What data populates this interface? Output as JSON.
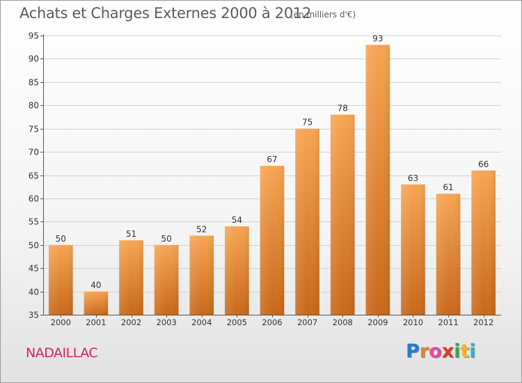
{
  "header": {
    "title": "Achats et Charges Externes 2000 à 2012",
    "subtitle": "(en milliers d'€)"
  },
  "footer": {
    "commune": "NADAILLAC",
    "logo_letters": [
      "P",
      "r",
      "o",
      "x",
      "i",
      "t",
      "i"
    ]
  },
  "colors": {
    "bar_top": "#f7a553",
    "bar_bottom": "#c8681a",
    "commune_text": "#d2245a",
    "logo": [
      "#1e7fd0",
      "#e0852a",
      "#e64a9c",
      "#d93a2a",
      "#3aa84a",
      "#f2b52a",
      "#2fb0d8"
    ]
  },
  "chart_data": {
    "type": "bar",
    "categories": [
      "2000",
      "2001",
      "2002",
      "2003",
      "2004",
      "2005",
      "2006",
      "2007",
      "2008",
      "2009",
      "2010",
      "2011",
      "2012"
    ],
    "values": [
      50,
      40,
      51,
      50,
      52,
      54,
      67,
      75,
      78,
      93,
      63,
      61,
      66
    ],
    "title": "Achats et Charges Externes 2000 à 2012",
    "xlabel": "",
    "ylabel": "",
    "ylim": [
      35,
      95
    ],
    "yticks": [
      35,
      40,
      45,
      50,
      55,
      60,
      65,
      70,
      75,
      80,
      85,
      90,
      95
    ],
    "grid": true,
    "data_labels": true
  }
}
